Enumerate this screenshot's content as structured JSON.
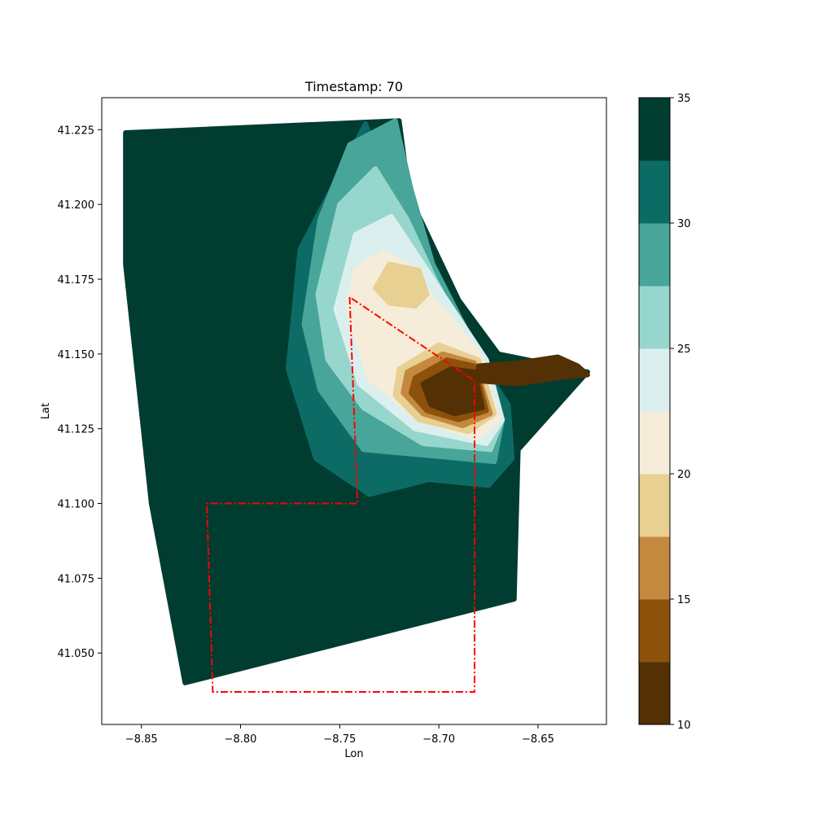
{
  "chart_data": {
    "type": "scatter",
    "title": "Timestamp: 70",
    "xlabel": "Lon",
    "ylabel": "Lat",
    "xlim": [
      -8.87,
      -8.6155
    ],
    "ylim": [
      41.0261,
      41.2357
    ],
    "x_ticks": [
      -8.85,
      -8.8,
      -8.75,
      -8.7,
      -8.65
    ],
    "x_tick_labels": [
      "−8.85",
      "−8.80",
      "−8.75",
      "−8.70",
      "−8.65"
    ],
    "y_ticks": [
      41.05,
      41.075,
      41.1,
      41.125,
      41.15,
      41.175,
      41.2,
      41.225
    ],
    "y_tick_labels": [
      "41.050",
      "41.075",
      "41.100",
      "41.125",
      "41.150",
      "41.175",
      "41.200",
      "41.225"
    ],
    "grid": false,
    "colorbar": {
      "range": [
        10,
        35
      ],
      "levels": [
        10,
        12.5,
        15,
        17.5,
        20,
        22.5,
        25,
        27.5,
        30,
        32.5,
        35
      ],
      "ticks": [
        10,
        15,
        20,
        25,
        30,
        35
      ],
      "tick_labels": [
        "10",
        "15",
        "20",
        "25",
        "30",
        "35"
      ],
      "colors": [
        "#543005",
        "#8c510a",
        "#c4883e",
        "#e8cf92",
        "#f5ecd9",
        "#dbf0ee",
        "#97d6cc",
        "#47a599",
        "#0c6c65",
        "#003c30"
      ],
      "placement": "right"
    },
    "field_regions": [
      {
        "level": 35,
        "color": "#003c30",
        "polygon": [
          [
            -8.858,
            41.224
          ],
          [
            -8.72,
            41.228
          ],
          [
            -8.715,
            41.203
          ],
          [
            -8.69,
            41.168
          ],
          [
            -8.67,
            41.15
          ],
          [
            -8.625,
            41.144
          ],
          [
            -8.66,
            41.118
          ],
          [
            -8.662,
            41.068
          ],
          [
            -8.828,
            41.04
          ],
          [
            -8.845,
            41.1
          ],
          [
            -8.858,
            41.18
          ]
        ]
      },
      {
        "level": 32.5,
        "color": "#0c6c65",
        "polygon": [
          [
            -8.737,
            41.227
          ],
          [
            -8.726,
            41.205
          ],
          [
            -8.715,
            41.183
          ],
          [
            -8.7,
            41.163
          ],
          [
            -8.68,
            41.148
          ],
          [
            -8.665,
            41.133
          ],
          [
            -8.663,
            41.115
          ],
          [
            -8.675,
            41.106
          ],
          [
            -8.705,
            41.108
          ],
          [
            -8.735,
            41.103
          ],
          [
            -8.762,
            41.115
          ],
          [
            -8.776,
            41.145
          ],
          [
            -8.77,
            41.185
          ]
        ]
      },
      {
        "level": 30,
        "color": "#47a599",
        "polygon": [
          [
            -8.722,
            41.228
          ],
          [
            -8.714,
            41.205
          ],
          [
            -8.703,
            41.18
          ],
          [
            -8.68,
            41.15
          ],
          [
            -8.668,
            41.128
          ],
          [
            -8.672,
            41.114
          ],
          [
            -8.705,
            41.116
          ],
          [
            -8.738,
            41.118
          ],
          [
            -8.76,
            41.138
          ],
          [
            -8.768,
            41.16
          ],
          [
            -8.76,
            41.195
          ],
          [
            -8.745,
            41.22
          ]
        ]
      },
      {
        "level": 27.5,
        "color": "#97d6cc",
        "polygon": [
          [
            -8.732,
            41.212
          ],
          [
            -8.716,
            41.195
          ],
          [
            -8.702,
            41.175
          ],
          [
            -8.682,
            41.15
          ],
          [
            -8.668,
            41.128
          ],
          [
            -8.674,
            41.118
          ],
          [
            -8.708,
            41.12
          ],
          [
            -8.738,
            41.132
          ],
          [
            -8.756,
            41.148
          ],
          [
            -8.761,
            41.17
          ],
          [
            -8.75,
            41.2
          ]
        ]
      },
      {
        "level": 25,
        "color": "#dbf0ee",
        "polygon": [
          [
            -8.724,
            41.196
          ],
          [
            -8.708,
            41.18
          ],
          [
            -8.69,
            41.162
          ],
          [
            -8.676,
            41.148
          ],
          [
            -8.668,
            41.128
          ],
          [
            -8.676,
            41.12
          ],
          [
            -8.712,
            41.125
          ],
          [
            -8.74,
            41.14
          ],
          [
            -8.752,
            41.165
          ],
          [
            -8.742,
            41.19
          ]
        ]
      },
      {
        "level": 22.5,
        "color": "#f5ecd9",
        "polygon": [
          [
            -8.728,
            41.184
          ],
          [
            -8.712,
            41.178
          ],
          [
            -8.705,
            41.17
          ],
          [
            -8.692,
            41.16
          ],
          [
            -8.68,
            41.15
          ],
          [
            -8.67,
            41.128
          ],
          [
            -8.68,
            41.122
          ],
          [
            -8.71,
            41.128
          ],
          [
            -8.735,
            41.142
          ],
          [
            -8.746,
            41.165
          ],
          [
            -8.742,
            41.178
          ]
        ]
      },
      {
        "level": 20,
        "color": "#e8cf92",
        "polygon": [
          [
            -8.725,
            41.18
          ],
          [
            -8.71,
            41.178
          ],
          [
            -8.706,
            41.17
          ],
          [
            -8.712,
            41.166
          ],
          [
            -8.725,
            41.167
          ],
          [
            -8.732,
            41.172
          ]
        ]
      },
      {
        "level": 20,
        "color": "#e8cf92",
        "polygon": [
          [
            -8.72,
            41.145
          ],
          [
            -8.7,
            41.153
          ],
          [
            -8.68,
            41.148
          ],
          [
            -8.672,
            41.13
          ],
          [
            -8.685,
            41.124
          ],
          [
            -8.71,
            41.128
          ],
          [
            -8.722,
            41.136
          ]
        ]
      },
      {
        "level": 17.5,
        "color": "#c4883e",
        "polygon": [
          [
            -8.716,
            41.144
          ],
          [
            -8.698,
            41.15
          ],
          [
            -8.682,
            41.147
          ],
          [
            -8.674,
            41.13
          ],
          [
            -8.688,
            41.126
          ],
          [
            -8.708,
            41.13
          ],
          [
            -8.718,
            41.137
          ]
        ]
      },
      {
        "level": 15,
        "color": "#8c510a",
        "polygon": [
          [
            -8.712,
            41.142
          ],
          [
            -8.696,
            41.148
          ],
          [
            -8.682,
            41.146
          ],
          [
            -8.676,
            41.131
          ],
          [
            -8.69,
            41.128
          ],
          [
            -8.706,
            41.131
          ],
          [
            -8.714,
            41.137
          ]
        ]
      },
      {
        "level": 10,
        "color": "#543005",
        "polygon": [
          [
            -8.708,
            41.14
          ],
          [
            -8.694,
            41.145
          ],
          [
            -8.682,
            41.144
          ],
          [
            -8.678,
            41.132
          ],
          [
            -8.692,
            41.13
          ],
          [
            -8.704,
            41.133
          ]
        ]
      },
      {
        "level": 10,
        "color": "#543005",
        "polygon": [
          [
            -8.68,
            41.146
          ],
          [
            -8.66,
            41.147
          ],
          [
            -8.64,
            41.149
          ],
          [
            -8.63,
            41.146
          ],
          [
            -8.625,
            41.143
          ],
          [
            -8.64,
            41.142
          ],
          [
            -8.66,
            41.14
          ],
          [
            -8.68,
            41.141
          ]
        ]
      }
    ],
    "boundary": {
      "style": "dash-dot",
      "color": "#ff0000",
      "points": [
        [
          -8.745,
          41.169
        ],
        [
          -8.741,
          41.1
        ],
        [
          -8.817,
          41.1
        ],
        [
          -8.814,
          41.037
        ],
        [
          -8.682,
          41.037
        ],
        [
          -8.682,
          41.141
        ],
        [
          -8.745,
          41.169
        ]
      ]
    }
  }
}
